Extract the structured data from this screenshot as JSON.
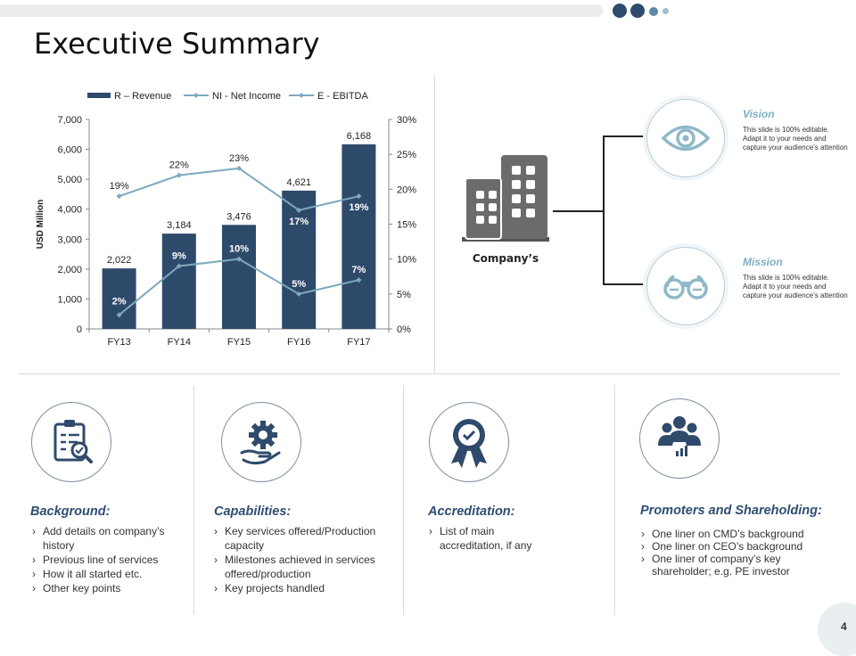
{
  "title": "Executive Summary",
  "page_number": "4",
  "company_label": "Company’s",
  "vision": {
    "title": "Vision",
    "body": "This slide is 100% editable. Adapt it to your needs and capture your audience’s attention"
  },
  "mission": {
    "title": "Mission",
    "body": "This slide is 100% editable. Adapt it to your needs and capture your audience’s attention"
  },
  "sections": {
    "background": {
      "title": "Background:",
      "items": [
        "Add details on company’s history",
        "Previous line of services",
        "How it all started etc.",
        "Other key points"
      ]
    },
    "capabilities": {
      "title": "Capabilities:",
      "items": [
        "Key services offered/Production capacity",
        "Milestones achieved in services offered/production",
        "Key projects handled"
      ]
    },
    "accreditation": {
      "title": "Accreditation:",
      "items": [
        "List of main accreditation, if any"
      ]
    },
    "promoters": {
      "title": "Promoters and Shareholding:",
      "items": [
        "One liner on CMD’s background",
        "One liner on CEO’s background",
        "One liner of company’s key shareholder; e.g. PE investor"
      ]
    }
  },
  "icons": {
    "vision": "eye-icon",
    "mission": "binoculars-icon",
    "company": "buildings-icon",
    "background": "clipboard-magnifier-icon",
    "capabilities": "gear-hand-icon",
    "accreditation": "award-badge-icon",
    "promoters": "people-chart-icon"
  },
  "colors": {
    "bar": "#2e4a6b",
    "line": "#7ea9bd",
    "accent": "#7fb0c2",
    "heading": "#2e4e72"
  },
  "chart_data": {
    "type": "bar",
    "categories": [
      "FY13",
      "FY14",
      "FY15",
      "FY16",
      "FY17"
    ],
    "series": [
      {
        "name": "R – Revenue",
        "type": "bar",
        "axis": "left",
        "values": [
          2022,
          3184,
          3476,
          4621,
          6168
        ],
        "labels": [
          "2,022",
          "3,184",
          "3,476",
          "4,621",
          "6,168"
        ]
      },
      {
        "name": "NI - Net Income",
        "type": "line",
        "axis": "right",
        "values": [
          2,
          9,
          10,
          5,
          7
        ],
        "labels": [
          "2%",
          "9%",
          "10%",
          "5%",
          "7%"
        ]
      },
      {
        "name": "E - EBITDA",
        "type": "line",
        "axis": "right",
        "values": [
          19,
          22,
          23,
          17,
          19
        ],
        "labels": [
          "19%",
          "22%",
          "23%",
          "17%",
          "19%"
        ]
      }
    ],
    "ylabel": "USD Million",
    "ylim": [
      0,
      7000
    ],
    "yticks": [
      "0",
      "1,000",
      "2,000",
      "3,000",
      "4,000",
      "5,000",
      "6,000",
      "7,000"
    ],
    "y2lim": [
      0,
      30
    ],
    "y2ticks": [
      "0%",
      "5%",
      "10%",
      "15%",
      "20%",
      "25%",
      "30%"
    ],
    "legend": "top",
    "grid": false
  }
}
